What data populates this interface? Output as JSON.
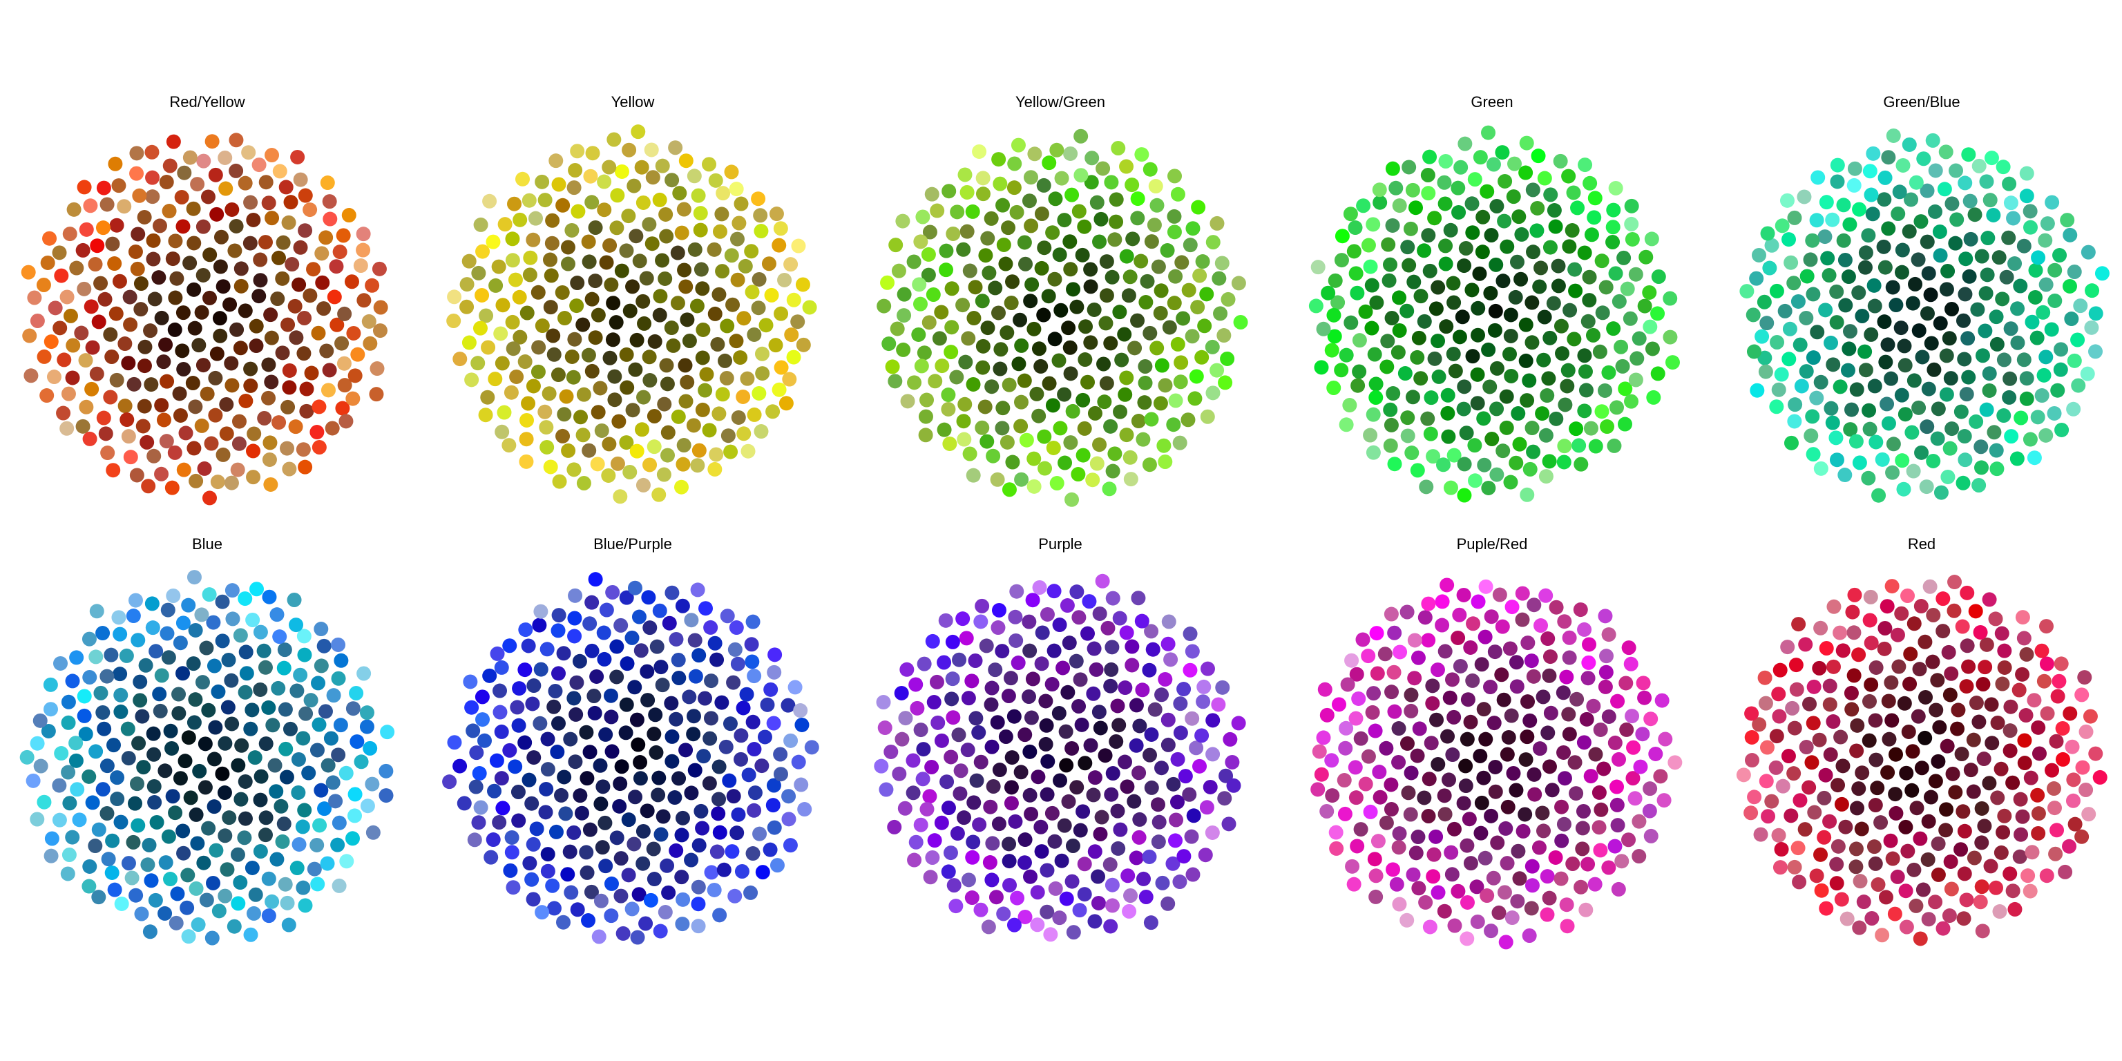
{
  "chart_data": {
    "type": "scatter",
    "description": "",
    "point_count_per_panel": 300,
    "layout": "phyllotaxis",
    "panels": [
      {
        "title": "Red/Yellow",
        "hue_start": 0,
        "hue_end": 40,
        "accent": "#e8311a"
      },
      {
        "title": "Yellow",
        "hue_start": 40,
        "hue_end": 70,
        "accent": "#e6d600"
      },
      {
        "title": "Yellow/Green",
        "hue_start": 70,
        "hue_end": 110,
        "accent": "#6ee61a"
      },
      {
        "title": "Green",
        "hue_start": 110,
        "hue_end": 140,
        "accent": "#22e622"
      },
      {
        "title": "Green/Blue",
        "hue_start": 140,
        "hue_end": 180,
        "accent": "#1ae6a8"
      },
      {
        "title": "Blue",
        "hue_start": 180,
        "hue_end": 220,
        "accent": "#1ab8e6"
      },
      {
        "title": "Blue/Purple",
        "hue_start": 220,
        "hue_end": 250,
        "accent": "#2222e6"
      },
      {
        "title": "Purple",
        "hue_start": 250,
        "hue_end": 290,
        "accent": "#8a1ae6"
      },
      {
        "title": "Puple/Red",
        "hue_start": 290,
        "hue_end": 330,
        "accent": "#e61ad6"
      },
      {
        "title": "Red",
        "hue_start": 330,
        "hue_end": 360,
        "accent": "#e6194f"
      }
    ]
  }
}
